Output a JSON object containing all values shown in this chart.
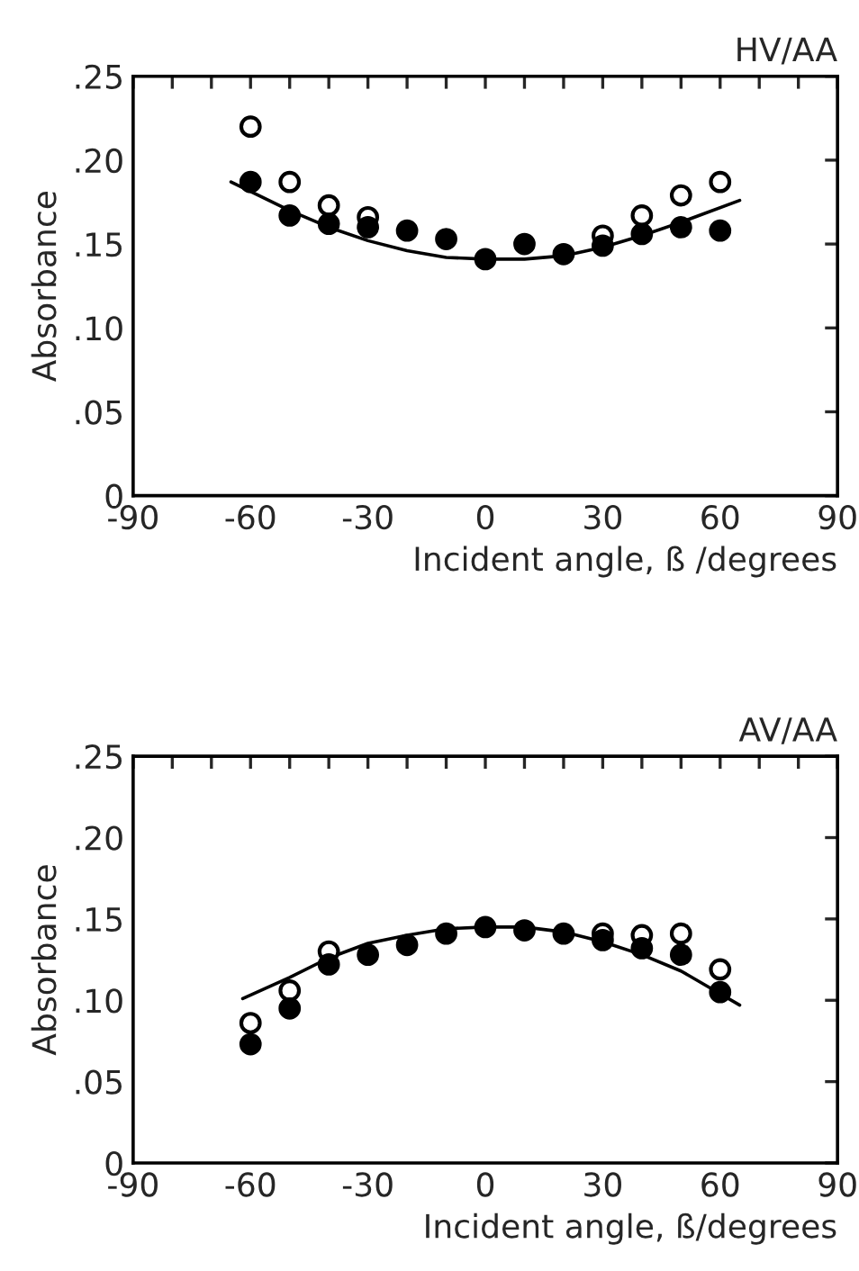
{
  "chart_data": [
    {
      "type": "scatter",
      "title": "HV/AA",
      "xlabel": "Incident angle, ß /degrees",
      "ylabel": "Absorbance",
      "xlim": [
        -90,
        90
      ],
      "ylim": [
        0,
        0.25
      ],
      "xticks": [
        -90,
        {
          "value": -80,
          "label": null
        },
        {
          "value": -70,
          "label": null
        },
        -60,
        {
          "value": -50,
          "label": null
        },
        {
          "value": -40,
          "label": null
        },
        -30,
        {
          "value": -20,
          "label": null
        },
        {
          "value": -10,
          "label": null
        },
        0,
        {
          "value": 10,
          "label": null
        },
        {
          "value": 20,
          "label": null
        },
        30,
        {
          "value": 40,
          "label": null
        },
        {
          "value": 50,
          "label": null
        },
        60,
        {
          "value": 70,
          "label": null
        },
        {
          "value": 80,
          "label": null
        },
        90
      ],
      "yticks": [
        {
          "value": 0,
          "label": "0"
        },
        {
          "value": 0.05,
          "label": ".05"
        },
        {
          "value": 0.1,
          "label": ".10"
        },
        {
          "value": 0.15,
          "label": ".15"
        },
        {
          "value": 0.2,
          "label": ".20"
        },
        {
          "value": 0.25,
          "label": ".25"
        }
      ],
      "grid": false,
      "legend": false,
      "series": [
        {
          "type": "line",
          "color": "#000000",
          "marker": "none",
          "line_style": "solid",
          "x": [
            -65,
            -50,
            -40,
            -30,
            -20,
            -10,
            0,
            10,
            20,
            30,
            40,
            50,
            65
          ],
          "values": [
            0.187,
            0.17,
            0.16,
            0.152,
            0.146,
            0.142,
            0.141,
            0.141,
            0.143,
            0.148,
            0.155,
            0.163,
            0.176
          ]
        },
        {
          "color": "#ffffff",
          "marker": "circle",
          "x": [
            -60,
            -50,
            -40,
            -30,
            30,
            40,
            50,
            60
          ],
          "values": [
            0.22,
            0.187,
            0.173,
            0.166,
            0.155,
            0.167,
            0.179,
            0.187
          ]
        },
        {
          "color": "#000000",
          "marker": "circle",
          "x": [
            -60,
            -50,
            -40,
            -30,
            -20,
            -10,
            0,
            10,
            20,
            30,
            40,
            50,
            60
          ],
          "values": [
            0.187,
            0.167,
            0.162,
            0.16,
            0.158,
            0.153,
            0.141,
            0.15,
            0.144,
            0.149,
            0.156,
            0.16,
            0.158
          ]
        }
      ]
    },
    {
      "type": "scatter",
      "title": "AV/AA",
      "xlabel": "Incident angle, ß/degrees",
      "ylabel": "Absorbance",
      "xlim": [
        -90,
        90
      ],
      "ylim": [
        0,
        0.25
      ],
      "xticks": [
        -90,
        {
          "value": -80,
          "label": null
        },
        {
          "value": -70,
          "label": null
        },
        -60,
        {
          "value": -50,
          "label": null
        },
        {
          "value": -40,
          "label": null
        },
        -30,
        {
          "value": -20,
          "label": null
        },
        {
          "value": -10,
          "label": null
        },
        0,
        {
          "value": 10,
          "label": null
        },
        {
          "value": 20,
          "label": null
        },
        30,
        {
          "value": 40,
          "label": null
        },
        {
          "value": 50,
          "label": null
        },
        60,
        {
          "value": 70,
          "label": null
        },
        {
          "value": 80,
          "label": null
        },
        90
      ],
      "yticks": [
        {
          "value": 0,
          "label": "0"
        },
        {
          "value": 0.05,
          "label": ".05"
        },
        {
          "value": 0.1,
          "label": ".10"
        },
        {
          "value": 0.15,
          "label": ".15"
        },
        {
          "value": 0.2,
          "label": ".20"
        },
        {
          "value": 0.25,
          "label": ".25"
        }
      ],
      "grid": false,
      "legend": false,
      "series": [
        {
          "type": "line",
          "color": "#000000",
          "marker": "none",
          "line_style": "solid",
          "x": [
            -62,
            -50,
            -40,
            -30,
            -20,
            -10,
            0,
            10,
            20,
            30,
            40,
            50,
            60,
            65
          ],
          "values": [
            0.101,
            0.114,
            0.126,
            0.135,
            0.14,
            0.144,
            0.145,
            0.145,
            0.142,
            0.136,
            0.128,
            0.118,
            0.104,
            0.097
          ]
        },
        {
          "color": "#ffffff",
          "marker": "circle",
          "x": [
            -60,
            -50,
            -40,
            30,
            40,
            50,
            60
          ],
          "values": [
            0.086,
            0.106,
            0.13,
            0.141,
            0.14,
            0.141,
            0.119
          ]
        },
        {
          "color": "#000000",
          "marker": "circle",
          "x": [
            -60,
            -50,
            -40,
            -30,
            -20,
            -10,
            0,
            10,
            20,
            30,
            40,
            50,
            60
          ],
          "values": [
            0.073,
            0.095,
            0.122,
            0.128,
            0.134,
            0.141,
            0.145,
            0.143,
            0.141,
            0.137,
            0.132,
            0.128,
            0.105
          ]
        }
      ]
    }
  ]
}
